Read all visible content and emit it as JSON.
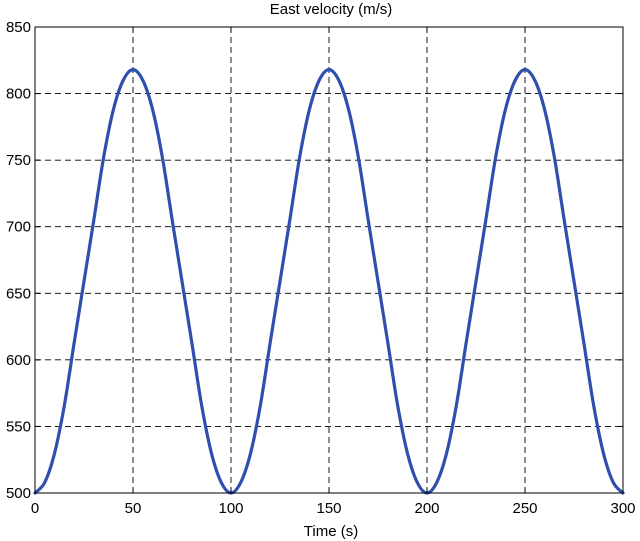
{
  "chart_data": {
    "type": "line",
    "title": "East velocity (m/s)",
    "xlabel": "Time (s)",
    "ylabel": "",
    "xlim": [
      0,
      300
    ],
    "ylim": [
      500,
      850
    ],
    "xticks": [
      0,
      50,
      100,
      150,
      200,
      250,
      300
    ],
    "yticks": [
      500,
      550,
      600,
      650,
      700,
      750,
      800,
      850
    ],
    "xtick_labels": [
      "0",
      "50",
      "100",
      "150",
      "200",
      "250",
      "300"
    ],
    "ytick_labels": [
      "500",
      "550",
      "600",
      "650",
      "700",
      "750",
      "800",
      "850"
    ],
    "grid": true,
    "grid_style": "dashed",
    "legend": "none",
    "line_color": "#2e4fad",
    "series": [
      {
        "x": [
          0,
          5,
          10,
          15,
          20,
          25,
          30,
          35,
          40,
          45,
          50,
          55,
          60,
          65,
          70,
          75,
          80,
          85,
          90,
          95,
          100,
          105,
          110,
          115,
          120,
          125,
          130,
          135,
          140,
          145,
          150,
          155,
          160,
          165,
          170,
          175,
          180,
          185,
          190,
          195,
          200,
          205,
          210,
          215,
          220,
          225,
          230,
          235,
          240,
          245,
          250,
          255,
          260,
          265,
          270,
          275,
          280,
          285,
          290,
          295,
          300
        ],
        "y": [
          500,
          508,
          530,
          566,
          613,
          659,
          705,
          752,
          788,
          810,
          818,
          810,
          788,
          752,
          705,
          659,
          613,
          566,
          530,
          508,
          500,
          508,
          530,
          566,
          613,
          659,
          705,
          752,
          788,
          810,
          818,
          810,
          788,
          752,
          705,
          659,
          613,
          566,
          530,
          508,
          500,
          508,
          530,
          566,
          613,
          659,
          705,
          752,
          788,
          810,
          818,
          810,
          788,
          752,
          705,
          659,
          613,
          566,
          530,
          508,
          500
        ]
      }
    ]
  }
}
